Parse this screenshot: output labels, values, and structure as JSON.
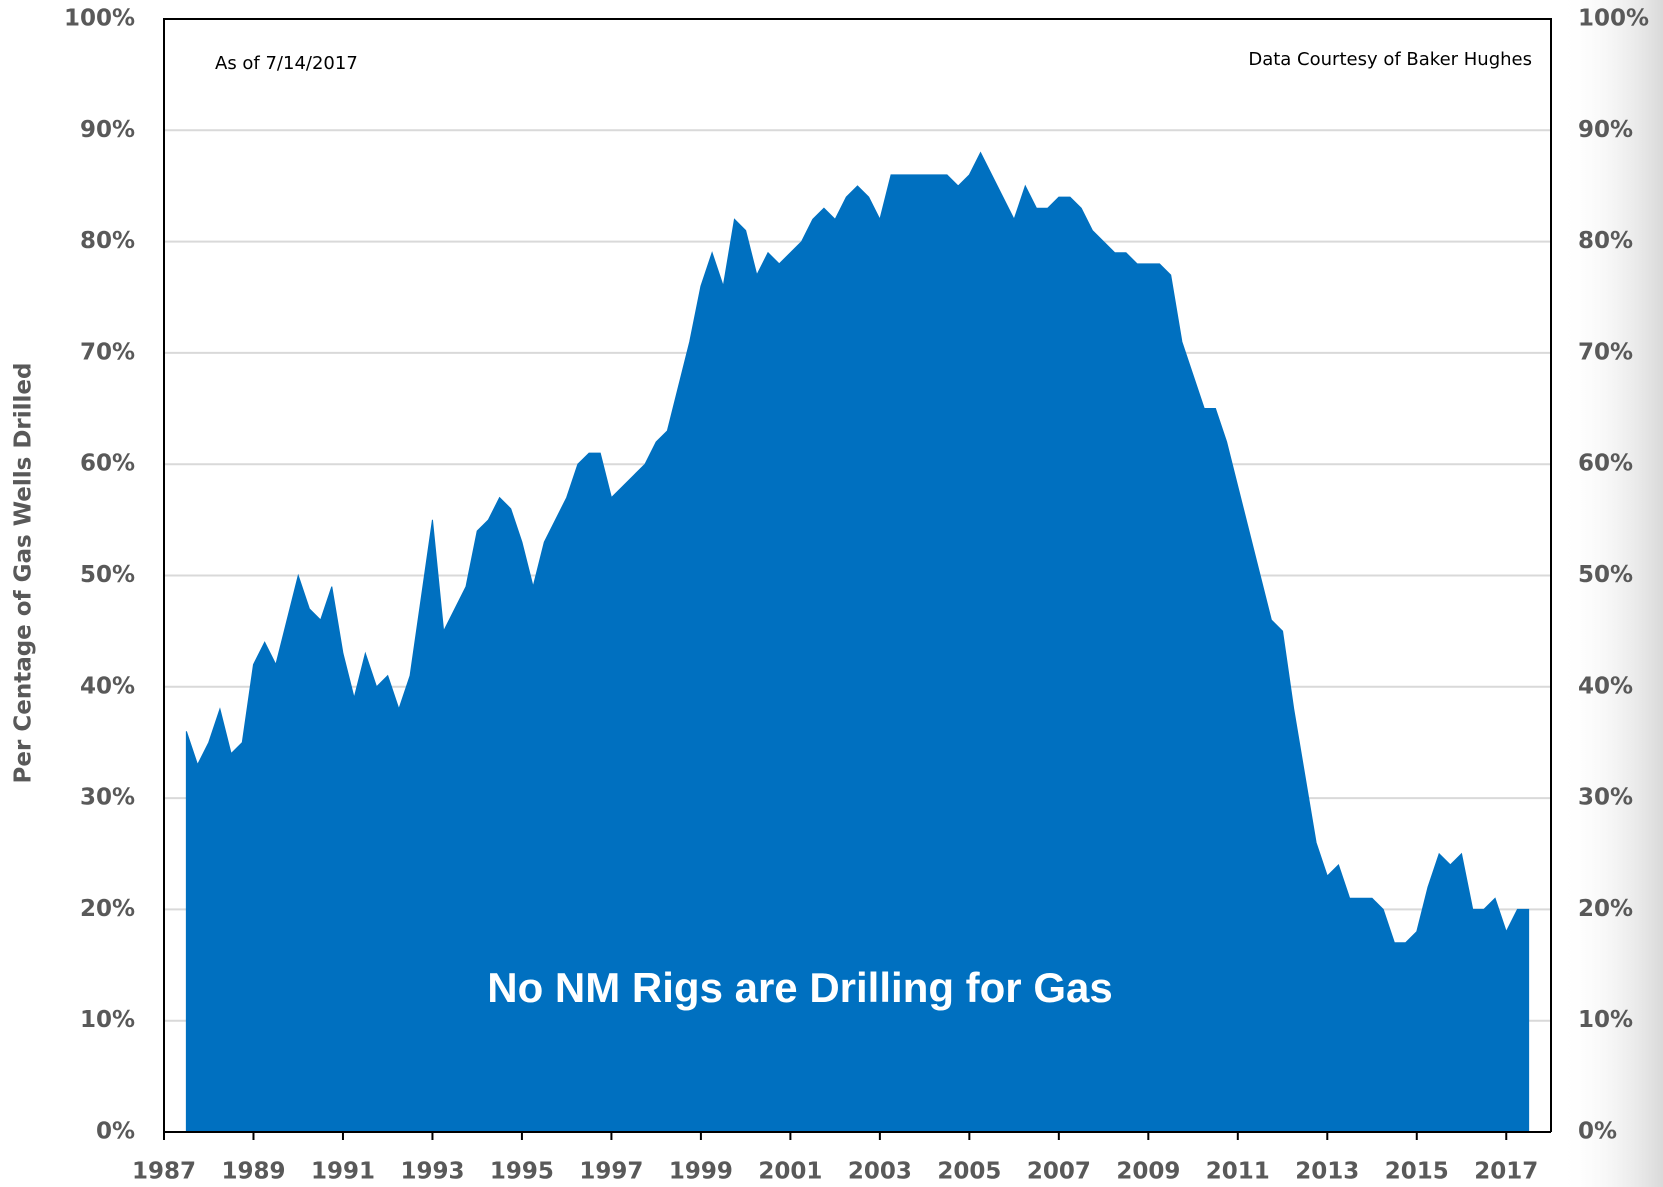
{
  "chart_data": {
    "type": "area",
    "ylabel": "Per Centage of Gas Wells Drilled",
    "annotations": [
      "As of 7/14/2017",
      "Data Courtesy of Baker Hughes",
      "No NM Rigs are Drilling for Gas"
    ],
    "color": "#0070c0",
    "x": [
      1987.5,
      1987.75,
      1988,
      1988.25,
      1988.5,
      1988.75,
      1989,
      1989.25,
      1989.5,
      1989.75,
      1990,
      1990.25,
      1990.5,
      1990.75,
      1991,
      1991.25,
      1991.5,
      1991.75,
      1992,
      1992.25,
      1992.5,
      1992.75,
      1993,
      1993.25,
      1993.5,
      1993.75,
      1994,
      1994.25,
      1994.5,
      1994.75,
      1995,
      1995.25,
      1995.5,
      1995.75,
      1996,
      1996.25,
      1996.5,
      1996.75,
      1997,
      1997.25,
      1997.5,
      1997.75,
      1998,
      1998.25,
      1998.5,
      1998.75,
      1999,
      1999.25,
      1999.5,
      1999.75,
      2000,
      2000.25,
      2000.5,
      2000.75,
      2001,
      2001.25,
      2001.5,
      2001.75,
      2002,
      2002.25,
      2002.5,
      2002.75,
      2003,
      2003.25,
      2003.5,
      2003.75,
      2004,
      2004.25,
      2004.5,
      2004.75,
      2005,
      2005.25,
      2005.5,
      2005.75,
      2006,
      2006.25,
      2006.5,
      2006.75,
      2007,
      2007.25,
      2007.5,
      2007.75,
      2008,
      2008.25,
      2008.5,
      2008.75,
      2009,
      2009.25,
      2009.5,
      2009.75,
      2010,
      2010.25,
      2010.5,
      2010.75,
      2011,
      2011.25,
      2011.5,
      2011.75,
      2012,
      2012.25,
      2012.5,
      2012.75,
      2013,
      2013.25,
      2013.5,
      2013.75,
      2014,
      2014.25,
      2014.5,
      2014.75,
      2015,
      2015.25,
      2015.5,
      2015.75,
      2016,
      2016.25,
      2016.5,
      2016.75,
      2017,
      2017.25,
      2017.5
    ],
    "values": [
      36,
      33,
      35,
      38,
      34,
      35,
      42,
      44,
      42,
      46,
      50,
      47,
      46,
      49,
      43,
      39,
      43,
      40,
      41,
      38,
      41,
      48,
      55,
      45,
      47,
      49,
      54,
      55,
      57,
      56,
      53,
      49,
      53,
      55,
      57,
      60,
      61,
      61,
      57,
      58,
      59,
      60,
      62,
      63,
      67,
      71,
      76,
      79,
      76,
      82,
      81,
      77,
      79,
      78,
      79,
      80,
      82,
      83,
      82,
      84,
      85,
      84,
      82,
      86,
      86,
      86,
      86,
      86,
      86,
      85,
      86,
      88,
      86,
      84,
      82,
      85,
      83,
      83,
      84,
      84,
      83,
      81,
      80,
      79,
      79,
      78,
      78,
      78,
      77,
      71,
      68,
      65,
      65,
      62,
      58,
      54,
      50,
      46,
      45,
      38,
      32,
      26,
      23,
      24,
      21,
      21,
      21,
      20,
      17,
      17,
      18,
      22,
      25,
      24,
      25,
      20,
      20,
      21,
      18,
      20,
      20
    ],
    "xlim": [
      1987,
      2018
    ],
    "xticks": [
      1987,
      1989,
      1991,
      1993,
      1995,
      1997,
      1999,
      2001,
      2003,
      2005,
      2007,
      2009,
      2011,
      2013,
      2015,
      2017
    ],
    "ylim": [
      0,
      100
    ],
    "yticks": [
      {
        "value": 0,
        "label": "0%"
      },
      {
        "value": 10,
        "label": "10%"
      },
      {
        "value": 20,
        "label": "20%"
      },
      {
        "value": 30,
        "label": "30%"
      },
      {
        "value": 40,
        "label": "40%"
      },
      {
        "value": 50,
        "label": "50%"
      },
      {
        "value": 60,
        "label": "60%"
      },
      {
        "value": 70,
        "label": "70%"
      },
      {
        "value": 80,
        "label": "80%"
      },
      {
        "value": 90,
        "label": "90%"
      },
      {
        "value": 100,
        "label": "100%"
      }
    ],
    "y2lim": [
      0,
      100
    ],
    "y2ticks": [
      {
        "value": 0,
        "label": "0%"
      },
      {
        "value": 10,
        "label": "10%"
      },
      {
        "value": 20,
        "label": "20%"
      },
      {
        "value": 30,
        "label": "30%"
      },
      {
        "value": 40,
        "label": "40%"
      },
      {
        "value": 50,
        "label": "50%"
      },
      {
        "value": 60,
        "label": "60%"
      },
      {
        "value": 70,
        "label": "70%"
      },
      {
        "value": 80,
        "label": "80%"
      },
      {
        "value": 90,
        "label": "90%"
      },
      {
        "value": 100,
        "label": "100%"
      }
    ],
    "grid": true
  }
}
